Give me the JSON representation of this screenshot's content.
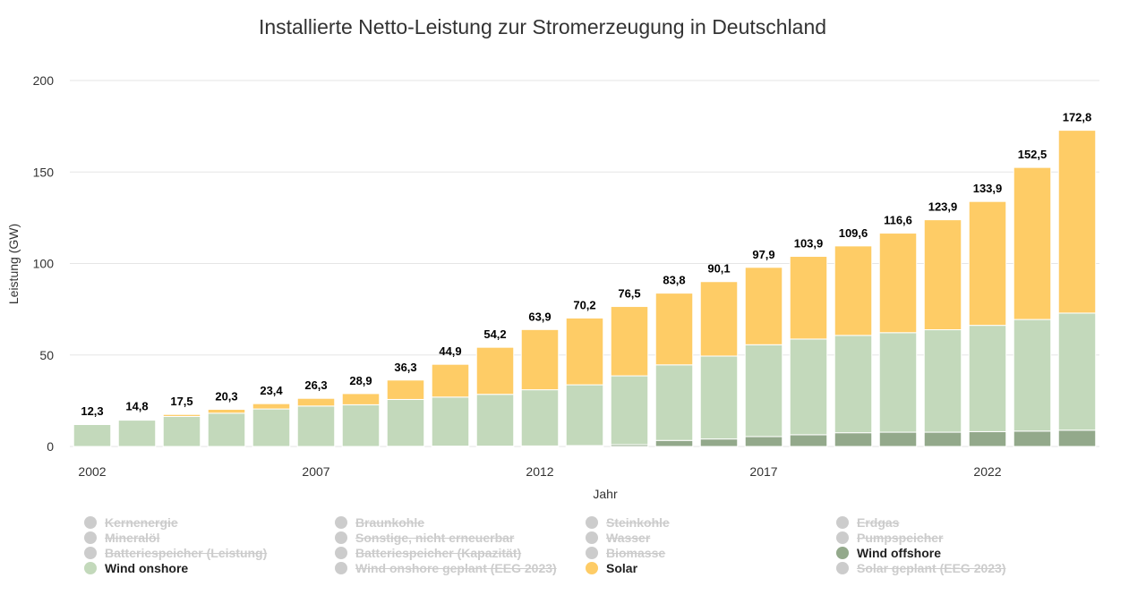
{
  "colors": {
    "wind_onshore": "#c3d9bb",
    "wind_offshore": "#93a98b",
    "solar": "#fecc66",
    "inactive": "#cccccc",
    "active_text": "#222222",
    "inactive_text": "#cccccc",
    "title": "#333333",
    "axis_text": "#333333",
    "grid": "#e6e6e6"
  },
  "chart_data": {
    "type": "bar",
    "stacked": true,
    "title": "Installierte Netto-Leistung zur Stromerzeugung in Deutschland",
    "xlabel": "Jahr",
    "ylabel": "Leistung (GW)",
    "ylim": [
      0,
      200
    ],
    "yticks": [
      "0",
      "50",
      "100",
      "150",
      "200"
    ],
    "grid": true,
    "x": [
      2002,
      2003,
      2004,
      2005,
      2006,
      2007,
      2008,
      2009,
      2010,
      2011,
      2012,
      2013,
      2014,
      2015,
      2016,
      2017,
      2018,
      2019,
      2020,
      2021,
      2022,
      2023,
      2024
    ],
    "xtick_labels": [
      "2002",
      "2007",
      "2012",
      "2017",
      "2022"
    ],
    "series": [
      {
        "name": "Wind offshore",
        "color_key": "wind_offshore",
        "values": [
          0,
          0,
          0,
          0,
          0,
          0,
          0,
          0.1,
          0.2,
          0.2,
          0.3,
          0.5,
          1.0,
          3.3,
          4.1,
          5.4,
          6.4,
          7.5,
          7.8,
          7.8,
          8.1,
          8.4,
          8.9
        ]
      },
      {
        "name": "Wind onshore",
        "color_key": "wind_onshore",
        "values": [
          12.0,
          14.4,
          16.4,
          18.2,
          20.5,
          22.1,
          22.8,
          25.6,
          26.8,
          28.3,
          30.7,
          33.2,
          37.6,
          41.3,
          45.3,
          50.2,
          52.3,
          53.2,
          54.4,
          56.0,
          58.1,
          61.0,
          64.0
        ]
      },
      {
        "name": "Solar",
        "color_key": "solar",
        "values": [
          0.3,
          0.4,
          1.1,
          2.1,
          2.9,
          4.2,
          6.1,
          10.6,
          17.9,
          25.7,
          32.9,
          36.5,
          37.9,
          39.2,
          40.7,
          42.3,
          45.2,
          48.9,
          54.4,
          60.1,
          67.7,
          83.1,
          99.9
        ]
      }
    ],
    "totals": [
      "12,3",
      "14,8",
      "17,5",
      "20,3",
      "23,4",
      "26,3",
      "28,9",
      "36,3",
      "44,9",
      "54,2",
      "63,9",
      "70,2",
      "76,5",
      "83,8",
      "90,1",
      "97,9",
      "103,9",
      "109,6",
      "116,6",
      "123,9",
      "133,9",
      "152,5",
      "172,8"
    ],
    "legend": [
      [
        {
          "label": "Kernenergie",
          "active": false
        },
        {
          "label": "Mineralöl",
          "active": false
        },
        {
          "label": "Batteriespeicher (Leistung)",
          "active": false
        },
        {
          "label": "Wind onshore",
          "active": true,
          "color_key": "wind_onshore"
        }
      ],
      [
        {
          "label": "Braunkohle",
          "active": false
        },
        {
          "label": "Sonstige, nicht erneuerbar",
          "active": false
        },
        {
          "label": "Batteriespeicher (Kapazität)",
          "active": false
        },
        {
          "label": "Wind onshore geplant (EEG 2023)",
          "active": false
        }
      ],
      [
        {
          "label": "Steinkohle",
          "active": false
        },
        {
          "label": "Wasser",
          "active": false
        },
        {
          "label": "Biomasse",
          "active": false
        },
        {
          "label": "Solar",
          "active": true,
          "color_key": "solar"
        }
      ],
      [
        {
          "label": "Erdgas",
          "active": false
        },
        {
          "label": "Pumpspeicher",
          "active": false
        },
        {
          "label": "Wind offshore",
          "active": true,
          "color_key": "wind_offshore"
        },
        {
          "label": "Solar geplant (EEG 2023)",
          "active": false
        }
      ]
    ]
  }
}
